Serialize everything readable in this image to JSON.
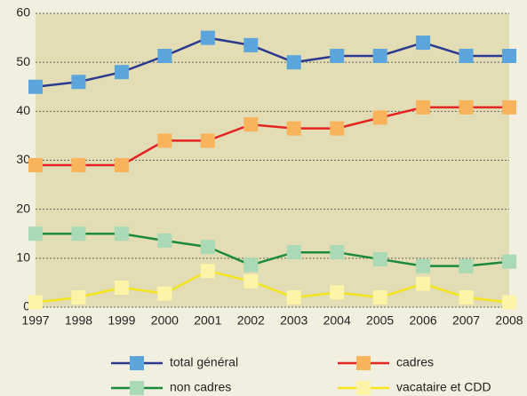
{
  "chart_data": {
    "type": "line",
    "x": [
      1997,
      1998,
      1999,
      2000,
      2001,
      2002,
      2003,
      2004,
      2005,
      2006,
      2007,
      2008
    ],
    "xlim": [
      1997,
      2008
    ],
    "xticks": [
      1997,
      1998,
      1999,
      2000,
      2001,
      2002,
      2003,
      2004,
      2005,
      2006,
      2007,
      2008
    ],
    "ylim": [
      0,
      60
    ],
    "yticks": [
      0,
      10,
      20,
      30,
      40,
      50,
      60
    ],
    "grid": true,
    "legend": "bottom",
    "series": [
      {
        "name": "total général",
        "color": "#2b3990",
        "marker_color": "#5aa5dc",
        "values": [
          45,
          46,
          48,
          51.3,
          55,
          53.5,
          50,
          51.3,
          51.3,
          54,
          51.3,
          51.3
        ]
      },
      {
        "name": "cadres",
        "color": "#e52421",
        "marker_color": "#f9b35b",
        "values": [
          29,
          29,
          29,
          34,
          34,
          37.3,
          36.5,
          36.5,
          38.7,
          40.8,
          40.8,
          40.8
        ]
      },
      {
        "name": "non cadres",
        "color": "#1a8a3c",
        "marker_color": "#a9d9b5",
        "values": [
          15,
          15,
          15,
          13.6,
          12.3,
          8.6,
          11.2,
          11.2,
          9.8,
          8.4,
          8.4,
          9.3
        ]
      },
      {
        "name": "vacataire et CDD",
        "color": "#f4e41b",
        "marker_color": "#fdf4a8",
        "values": [
          1,
          2,
          4,
          2.8,
          7.4,
          5.3,
          2,
          3,
          2,
          4.8,
          2,
          1
        ]
      }
    ]
  }
}
